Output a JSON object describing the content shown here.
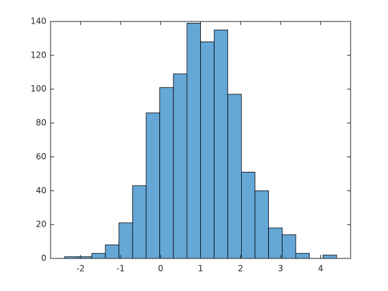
{
  "chart_data": {
    "type": "histogram",
    "bins": [
      -2.4,
      -2.06,
      -1.72,
      -1.38,
      -1.04,
      -0.7,
      -0.36,
      -0.02,
      0.32,
      0.66,
      1,
      1.34,
      1.68,
      2.02,
      2.36,
      2.7,
      3.04,
      3.38,
      3.72,
      4.06,
      4.4
    ],
    "values": [
      1,
      1,
      3,
      8,
      21,
      43,
      86,
      101,
      109,
      139,
      128,
      135,
      97,
      51,
      40,
      18,
      14,
      3,
      0,
      2
    ],
    "color": "#65a7d7",
    "xlim": [
      -2.75,
      4.75
    ],
    "xticks": [
      -2,
      -1,
      0,
      1,
      2,
      3,
      4
    ],
    "ylim": [
      0,
      140
    ],
    "yticks": [
      0,
      20,
      40,
      60,
      80,
      100,
      120,
      140
    ]
  }
}
